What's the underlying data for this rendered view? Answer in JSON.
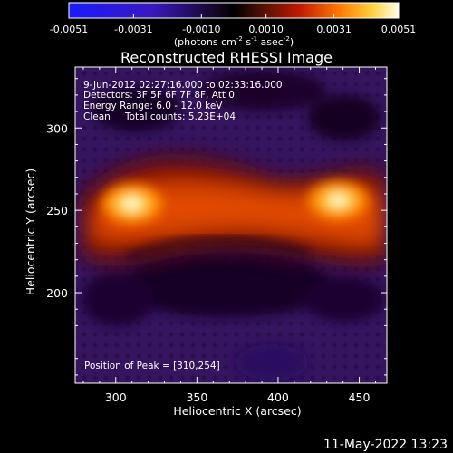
{
  "colorbar": {
    "tick_labels": [
      "-0.0051",
      "-0.0031",
      "-0.0010",
      "0.0010",
      "0.0031",
      "0.0051"
    ],
    "tick_values": [
      -0.0051,
      -0.0031,
      -0.001,
      0.001,
      0.0031,
      0.0051
    ],
    "range": [
      -0.0051,
      0.0051
    ],
    "units_main": "(photons cm",
    "units_exp1": "-2",
    "units_mid1": " s",
    "units_exp2": "-1",
    "units_mid2": " asec",
    "units_exp3": "-2",
    "units_end": ")"
  },
  "title": "Reconstructed RHESSI Image",
  "annotations": {
    "time_range": "9-Jun-2012 02:27:16.000 to 02:33:16.000",
    "detectors": "Detectors: 3F 5F 6F 7F 8F, Att 0",
    "energy": "Energy Range: 6.0 - 12.0 keV",
    "clean_label": "Clean",
    "total_counts": "Total counts: 5.23E+04",
    "peak": "Position of Peak = [310,254]"
  },
  "footer_timestamp": "11-May-2022 13:23",
  "chart_data": {
    "type": "heatmap",
    "title": "Reconstructed RHESSI Image",
    "xlabel": "Heliocentric X (arcsec)",
    "ylabel": "Heliocentric Y (arcsec)",
    "xlim": [
      275,
      467
    ],
    "ylim": [
      145,
      337
    ],
    "x_ticks": [
      300,
      350,
      400,
      450
    ],
    "y_ticks": [
      200,
      250,
      300
    ],
    "x_tick_labels": [
      "300",
      "350",
      "400",
      "450"
    ],
    "y_tick_labels": [
      "200",
      "250",
      "300"
    ],
    "grid": false,
    "sources": [
      {
        "x": 310,
        "y": 254,
        "intensity": 1.0
      },
      {
        "x": 437,
        "y": 256,
        "intensity": 0.95
      }
    ],
    "loop_band_y": [
      248,
      270
    ]
  }
}
